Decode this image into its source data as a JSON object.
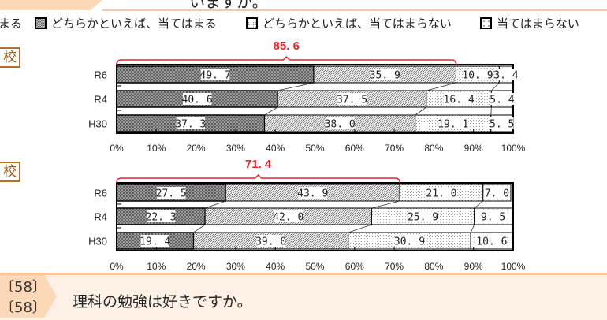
{
  "header": {
    "question_partial": "いますか。"
  },
  "legend": [
    {
      "label": "まる",
      "pattern": "dark"
    },
    {
      "label": "どちらかといえば、当てはまる",
      "pattern": "check"
    },
    {
      "label": "どちらかといえば、当てはまらない",
      "pattern": "dots"
    },
    {
      "label": "当てはまらない",
      "pattern": "sparse"
    }
  ],
  "sections": [
    {
      "label": "校"
    },
    {
      "label": "校"
    }
  ],
  "footer": {
    "num1": "〔58〕",
    "num2": "〔58〕",
    "question": "理科の勉強は好きですか。"
  },
  "chart_data": [
    {
      "type": "bar",
      "stacked": true,
      "orientation": "horizontal",
      "categories": [
        "R6",
        "R4",
        "H30"
      ],
      "series": [
        {
          "name": "当てはまる",
          "values": [
            49.7,
            40.6,
            37.3
          ]
        },
        {
          "name": "どちらかといえば、当てはまる",
          "values": [
            35.9,
            37.5,
            38.0
          ]
        },
        {
          "name": "どちらかといえば、当てはまらない",
          "values": [
            10.9,
            16.4,
            19.1
          ]
        },
        {
          "name": "当てはまらない",
          "values": [
            3.4,
            5.4,
            5.5
          ]
        }
      ],
      "annotation": "85.6",
      "annotation_value": 85.6,
      "xlim": [
        0,
        100
      ],
      "xticks": [
        "0%",
        "10%",
        "20%",
        "30%",
        "40%",
        "50%",
        "60%",
        "70%",
        "80%",
        "90%",
        "100%"
      ]
    },
    {
      "type": "bar",
      "stacked": true,
      "orientation": "horizontal",
      "categories": [
        "R6",
        "R4",
        "H30"
      ],
      "series": [
        {
          "name": "当てはまる",
          "values": [
            27.5,
            22.3,
            19.4
          ]
        },
        {
          "name": "どちらかといえば、当てはまる",
          "values": [
            43.9,
            42.0,
            39.0
          ]
        },
        {
          "name": "どちらかといえば、当てはまらない",
          "values": [
            21.0,
            25.9,
            30.9
          ]
        },
        {
          "name": "当てはまらない",
          "values": [
            7.0,
            9.5,
            10.6
          ]
        }
      ],
      "annotation": "71.4",
      "annotation_value": 71.4,
      "xlim": [
        0,
        100
      ],
      "xticks": [
        "0%",
        "10%",
        "20%",
        "30%",
        "40%",
        "50%",
        "60%",
        "70%",
        "80%",
        "90%",
        "100%"
      ]
    }
  ],
  "colors": {
    "accent": "#e8232a",
    "frame": "#b3712a",
    "band": "#f8c9a0"
  }
}
